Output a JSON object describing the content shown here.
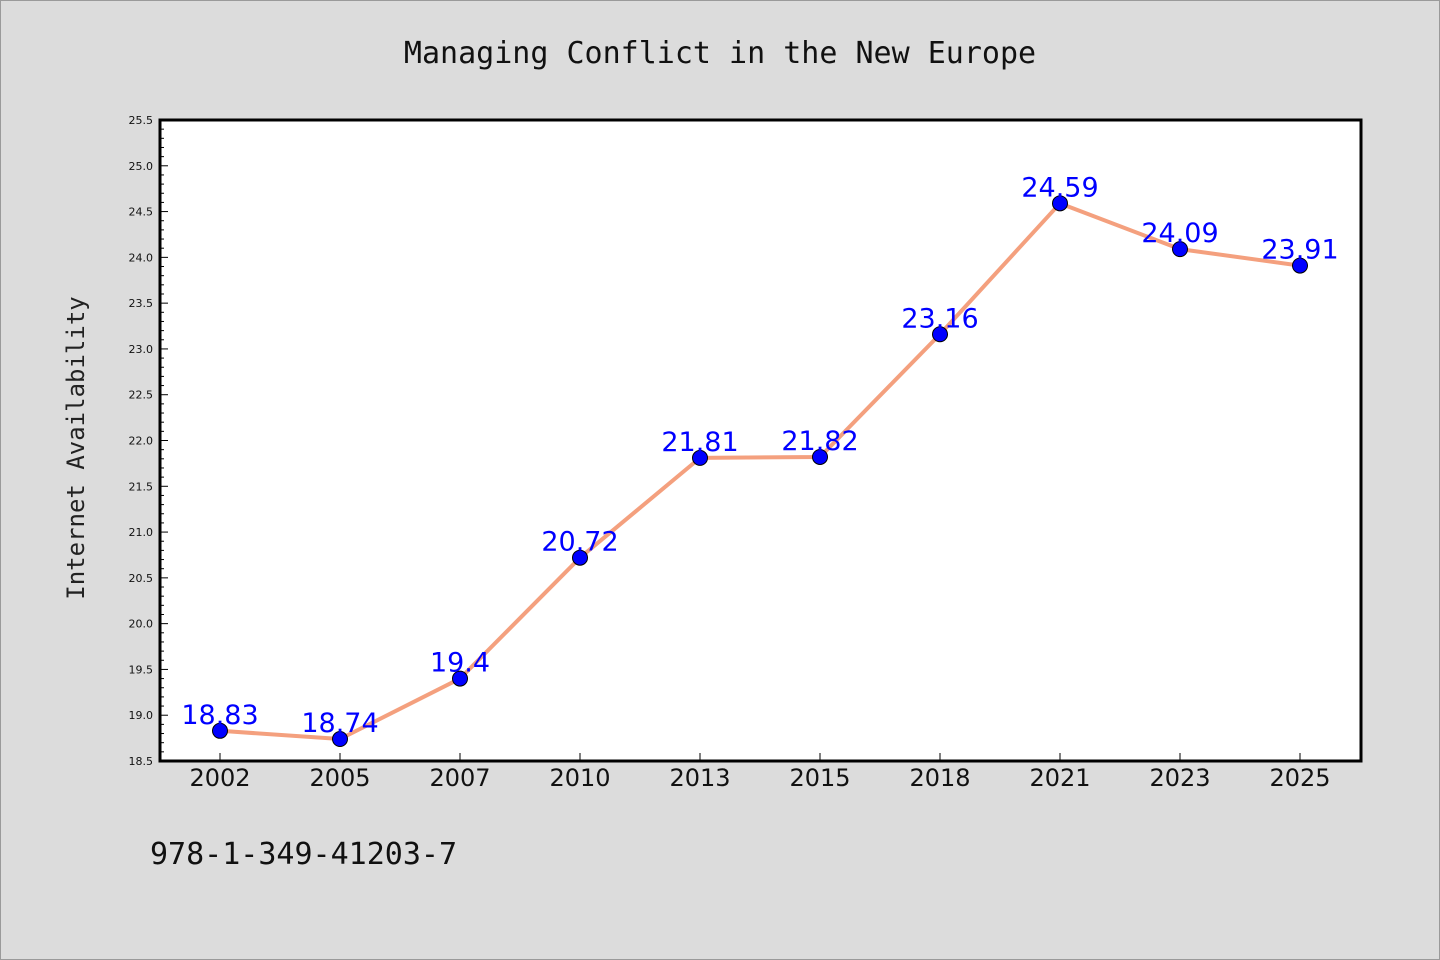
{
  "chart_data": {
    "type": "line",
    "title": "Managing Conflict in the New Europe",
    "xlabel": "",
    "ylabel": "Internet Availability",
    "categories": [
      "2002",
      "2005",
      "2007",
      "2010",
      "2013",
      "2015",
      "2018",
      "2021",
      "2023",
      "2025"
    ],
    "series": [
      {
        "values": [
          18.83,
          18.74,
          19.4,
          20.72,
          21.81,
          21.82,
          23.16,
          24.59,
          24.09,
          23.91
        ],
        "data_labels": [
          "18.83",
          "18.74",
          "19.4",
          "20.72",
          "21.81",
          "21.82",
          "23.16",
          "24.59",
          "24.09",
          "23.91"
        ],
        "line_color": "#f4a07e",
        "marker_color": "#0000ff"
      }
    ],
    "ylim": [
      18.5,
      25.5
    ],
    "yticks": [
      "18.5",
      "19.0",
      "19.5",
      "20.0",
      "20.5",
      "21.0",
      "21.5",
      "22.0",
      "22.5",
      "23.0",
      "23.5",
      "24.0",
      "24.5",
      "25.0",
      "25.5"
    ],
    "grid": false,
    "legend": "none"
  },
  "footer": {
    "isbn": "978-1-349-41203-7"
  },
  "colors": {
    "background": "#dcdcdc",
    "plot_background": "#ffffff",
    "line": "#f4a07e",
    "marker": "#0000ff",
    "data_label": "#0000ff"
  }
}
